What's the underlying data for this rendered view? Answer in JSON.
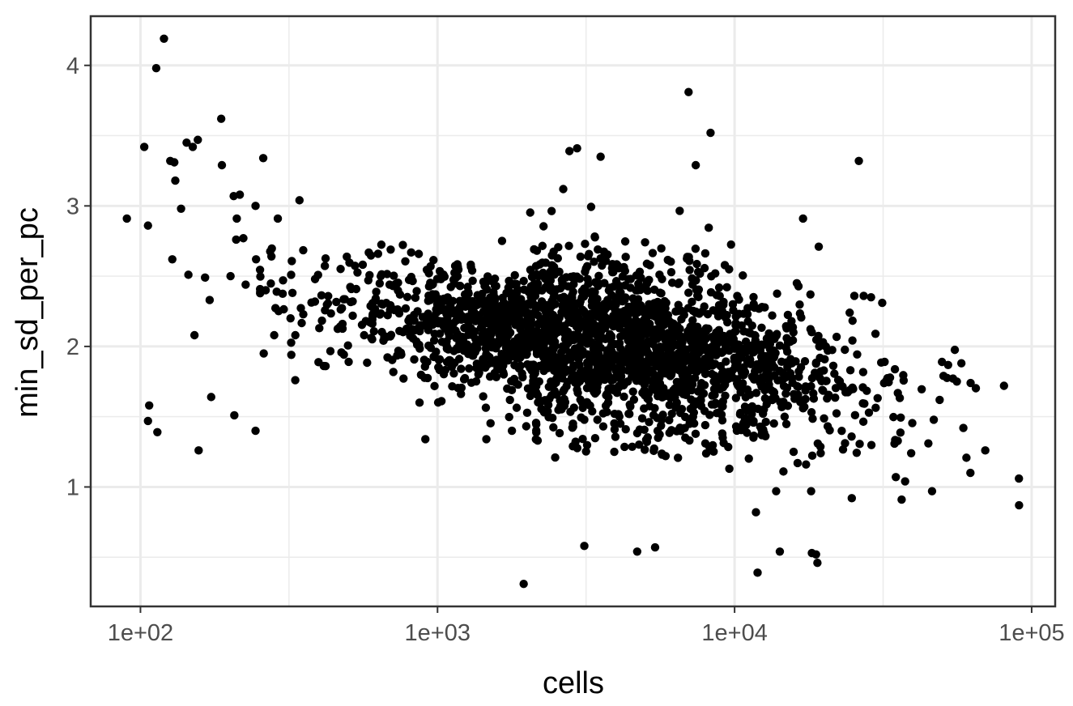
{
  "chart_data": {
    "type": "scatter",
    "title": "",
    "xlabel": "cells",
    "ylabel": "min_sd_per_pc",
    "x_scale": "log10",
    "xlim": [
      68,
      120000
    ],
    "ylim": [
      0.15,
      4.35
    ],
    "x_ticks": [
      100,
      1000,
      10000,
      100000
    ],
    "x_tick_labels": [
      "1e+02",
      "1e+03",
      "1e+04",
      "1e+05"
    ],
    "y_ticks": [
      1,
      2,
      3,
      4
    ],
    "y_tick_labels": [
      "1",
      "2",
      "3",
      "4"
    ],
    "grid": true,
    "legend": "none",
    "point_color": "#000000",
    "background": "#ffffff",
    "grid_color": "#ebebeb",
    "points": [
      [
        90,
        2.91
      ],
      [
        103,
        3.42
      ],
      [
        106,
        2.86
      ],
      [
        107,
        1.58
      ],
      [
        106,
        1.47
      ],
      [
        113,
        3.98
      ],
      [
        114,
        1.39
      ],
      [
        120,
        4.19
      ],
      [
        126,
        3.32
      ],
      [
        128,
        2.62
      ],
      [
        130,
        3.31
      ],
      [
        131,
        3.18
      ],
      [
        137,
        2.98
      ],
      [
        143,
        3.45
      ],
      [
        145,
        2.51
      ],
      [
        150,
        3.42
      ],
      [
        152,
        2.08
      ],
      [
        156,
        3.47
      ],
      [
        157,
        1.26
      ],
      [
        165,
        2.49
      ],
      [
        171,
        2.33
      ],
      [
        173,
        1.64
      ],
      [
        187,
        3.62
      ],
      [
        188,
        3.29
      ],
      [
        201,
        2.5
      ],
      [
        207,
        1.51
      ],
      [
        206,
        3.07
      ],
      [
        210,
        2.76
      ],
      [
        211,
        2.91
      ],
      [
        216,
        3.08
      ],
      [
        222,
        2.77
      ],
      [
        226,
        2.44
      ],
      [
        244,
        1.4
      ],
      [
        245,
        2.62
      ],
      [
        244,
        3.0
      ],
      [
        253,
        2.39
      ],
      [
        259,
        3.34
      ],
      [
        260,
        1.95
      ],
      [
        264,
        2.4
      ],
      [
        276,
        2.64
      ],
      [
        282,
        2.08
      ],
      [
        290,
        2.91
      ],
      [
        302,
        2.47
      ],
      [
        320,
        2.2
      ],
      [
        322,
        1.94
      ],
      [
        332,
        1.76
      ],
      [
        343,
        3.04
      ],
      [
        400,
        2.13
      ],
      [
        420,
        1.86
      ],
      [
        870,
        1.6
      ],
      [
        910,
        1.34
      ],
      [
        1460,
        1.34
      ],
      [
        1780,
        1.4
      ],
      [
        1950,
        0.31
      ],
      [
        2650,
        3.12
      ],
      [
        2780,
        3.39
      ],
      [
        2950,
        3.41
      ],
      [
        3120,
        0.58
      ],
      [
        3540,
        3.35
      ],
      [
        4700,
        0.54
      ],
      [
        5400,
        0.57
      ],
      [
        5700,
        1.23
      ],
      [
        7000,
        3.81
      ],
      [
        7400,
        3.29
      ],
      [
        8300,
        3.52
      ],
      [
        9600,
        1.13
      ],
      [
        11800,
        0.82
      ],
      [
        11950,
        0.39
      ],
      [
        14200,
        0.54
      ],
      [
        18200,
        0.53
      ],
      [
        18800,
        0.52
      ],
      [
        19000,
        0.46
      ],
      [
        24800,
        0.92
      ],
      [
        26200,
        3.32
      ],
      [
        31400,
        2.31
      ],
      [
        37500,
        1.04
      ],
      [
        36500,
        0.91
      ],
      [
        46200,
        0.97
      ],
      [
        58000,
        1.88
      ],
      [
        62200,
        1.1
      ],
      [
        80700,
        1.72
      ],
      [
        90600,
        1.06
      ],
      [
        90700,
        0.87
      ],
      [
        69800,
        1.26
      ],
      [
        62300,
        1.74
      ],
      [
        56000,
        1.75
      ],
      [
        50500,
        1.79
      ],
      [
        49900,
        1.89
      ],
      [
        44900,
        1.31
      ],
      [
        39300,
        1.24
      ],
      [
        34900,
        1.07
      ],
      [
        29800,
        2.09
      ],
      [
        28800,
        2.35
      ],
      [
        27200,
        2.36
      ],
      [
        25300,
        2.36
      ],
      [
        24400,
        2.24
      ],
      [
        20600,
        1.97
      ],
      [
        19200,
        2.71
      ],
      [
        18000,
        2.37
      ],
      [
        17000,
        2.91
      ],
      [
        16200,
        2.45
      ],
      [
        13800,
        0.97
      ],
      [
        14600,
        1.11
      ],
      [
        15800,
        1.25
      ],
      [
        16300,
        1.17
      ],
      [
        17400,
        1.16
      ],
      [
        18100,
        0.97
      ]
    ]
  }
}
